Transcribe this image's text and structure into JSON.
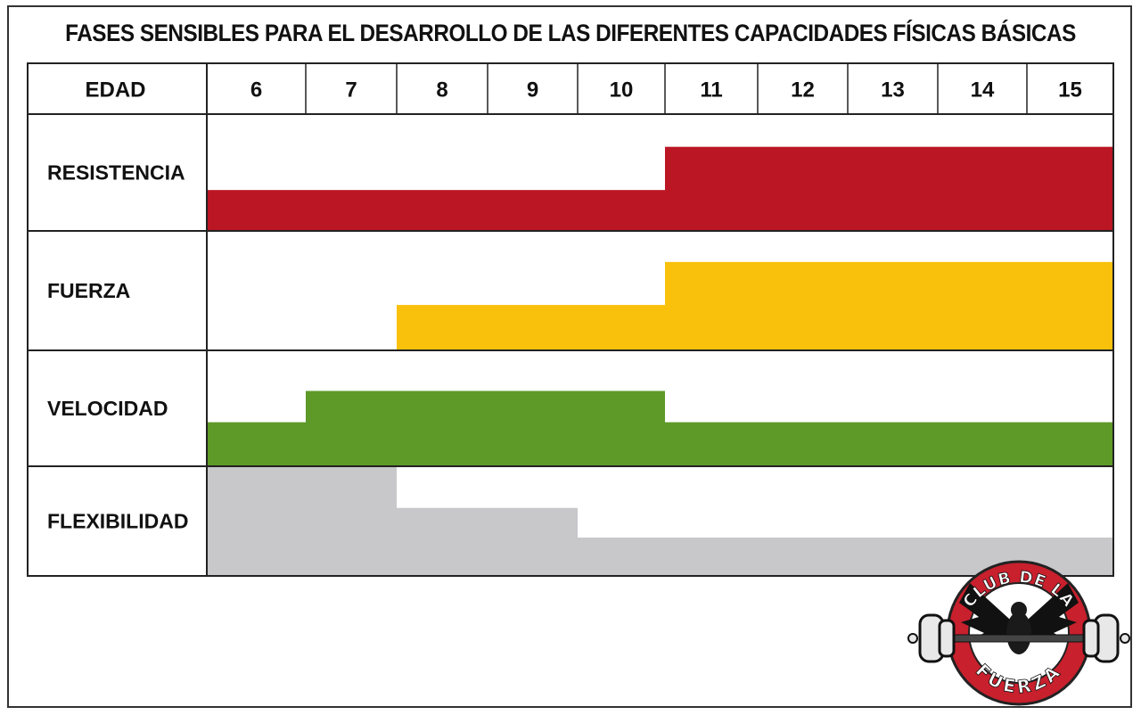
{
  "title": "FASES SENSIBLES PARA EL DESARROLLO DE LAS DIFERENTES CAPACIDADES FÍSICAS BÁSICAS",
  "header": {
    "label": "EDAD",
    "ages": [
      "6",
      "7",
      "8",
      "9",
      "10",
      "11",
      "12",
      "13",
      "14",
      "15"
    ]
  },
  "logo": {
    "top_text": "CLUB DE LA",
    "bottom_text": "FUERZA",
    "color": "#c8202d"
  },
  "chart_data": {
    "type": "table",
    "x_axis": {
      "label": "EDAD",
      "range": [
        6,
        15
      ]
    },
    "rows": [
      {
        "name": "RESISTENCIA",
        "color": "#bb1624",
        "segments": [
          {
            "from_age": 6,
            "to_age": 10,
            "level": 0.35
          },
          {
            "from_age": 11,
            "to_age": 15,
            "level": 0.72
          }
        ]
      },
      {
        "name": "FUERZA",
        "color": "#f9c10c",
        "segments": [
          {
            "from_age": 8,
            "to_age": 10,
            "level": 0.38
          },
          {
            "from_age": 11,
            "to_age": 15,
            "level": 0.74
          }
        ]
      },
      {
        "name": "VELOCIDAD",
        "color": "#5e9a28",
        "segments": [
          {
            "from_age": 6,
            "to_age": 6,
            "level": 0.38
          },
          {
            "from_age": 7,
            "to_age": 10,
            "level": 0.65
          },
          {
            "from_age": 11,
            "to_age": 15,
            "level": 0.38
          }
        ]
      },
      {
        "name": "FLEXIBILIDAD",
        "color": "#c8c8cb",
        "segments": [
          {
            "from_age": 6,
            "to_age": 7,
            "level": 1.0
          },
          {
            "from_age": 8,
            "to_age": 9,
            "level": 0.62
          },
          {
            "from_age": 10,
            "to_age": 15,
            "level": 0.35
          }
        ]
      }
    ]
  }
}
